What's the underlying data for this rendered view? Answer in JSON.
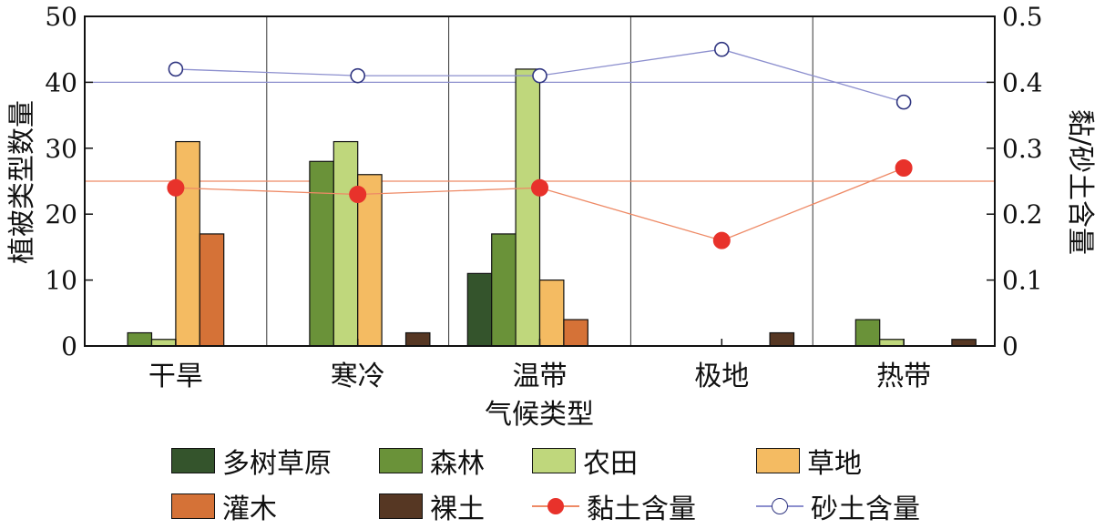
{
  "chart_data": {
    "type": "bar",
    "categories": [
      "干旱",
      "寒冷",
      "温带",
      "极地",
      "热带"
    ],
    "xlabel": "气候类型",
    "ylabel": "植被类型数量",
    "ylabel_right": "黏/砂土含量",
    "ylim": [
      0,
      50
    ],
    "ylim_right": [
      0,
      0.5
    ],
    "yticks": [
      "0",
      "10",
      "20",
      "30",
      "40",
      "50"
    ],
    "yticks_right": [
      "0",
      "0.1",
      "0.2",
      "0.3",
      "0.4",
      "0.5"
    ],
    "series": [
      {
        "name": "多树草原",
        "color": "#34542c",
        "values": [
          0,
          0,
          11,
          0,
          0
        ]
      },
      {
        "name": "森林",
        "color": "#6a9239",
        "values": [
          2,
          28,
          17,
          0,
          4
        ]
      },
      {
        "name": "农田",
        "color": "#bfd77c",
        "values": [
          1,
          31,
          42,
          0,
          1
        ]
      },
      {
        "name": "草地",
        "color": "#f4bb62",
        "values": [
          31,
          26,
          10,
          0,
          0
        ]
      },
      {
        "name": "灌木",
        "color": "#d57237",
        "values": [
          17,
          0,
          4,
          0,
          0
        ]
      },
      {
        "name": "裸土",
        "color": "#563723",
        "values": [
          0,
          2,
          0,
          2,
          1
        ]
      }
    ],
    "line_series": [
      {
        "name": "黏土含量",
        "color": "#ee8a66",
        "marker_color": "#e8322b",
        "marker": "filled-circle",
        "axis": "right",
        "values": [
          0.24,
          0.23,
          0.24,
          0.16,
          0.27
        ],
        "reference": 0.25
      },
      {
        "name": "砂土含量",
        "color": "#8c8fce",
        "marker_color": "#2f3580",
        "marker": "open-circle",
        "axis": "right",
        "values": [
          0.42,
          0.41,
          0.41,
          0.45,
          0.37
        ],
        "reference": 0.4
      }
    ],
    "legend_position": "bottom"
  }
}
